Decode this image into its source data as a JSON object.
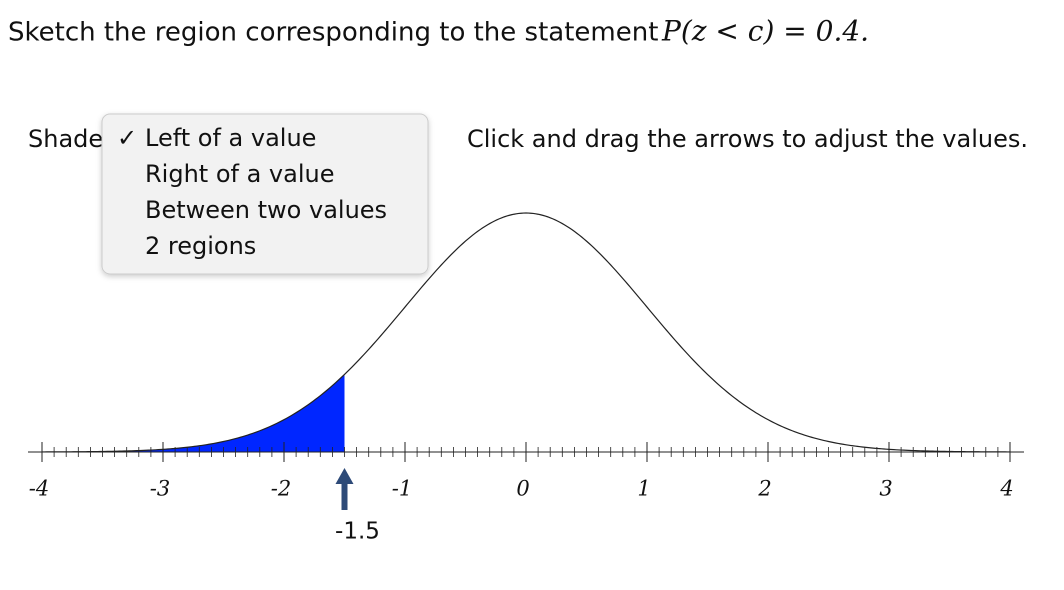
{
  "prompt": "Sketch the region corresponding to the statement",
  "math": "P(z < c) = 0.4.",
  "shade_label": "Shade",
  "dropdown": {
    "checkmark": "✓",
    "options": [
      "Left of a value",
      "Right of a value",
      "Between two values",
      "2 regions"
    ],
    "selected": 0
  },
  "instruction": "Click and drag the arrows to adjust the values.",
  "axis": {
    "xlim": [
      -4,
      4
    ],
    "xticks": [
      -4,
      -3,
      -2,
      -1,
      0,
      1,
      2,
      3,
      4
    ]
  },
  "marker": {
    "value": -1.5
  },
  "shade_color": "#0026ff"
}
